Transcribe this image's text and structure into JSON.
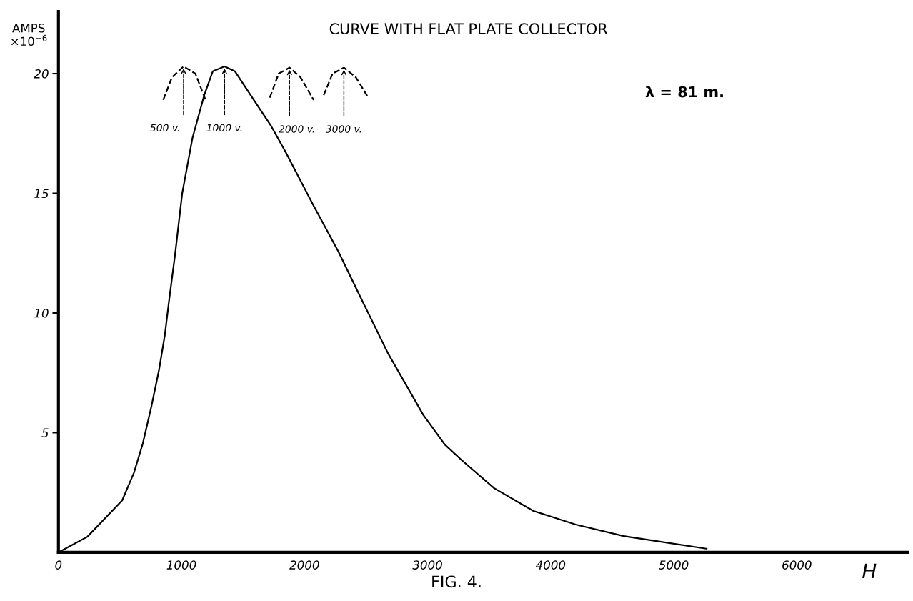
{
  "chart_data": {
    "type": "line",
    "title": "CURVE WITH FLAT PLATE COLLECTOR",
    "xlabel": "H",
    "ylabel": "AMPS\n×10$^{−6}$",
    "x": [
      0,
      235,
      518,
      614,
      686,
      756,
      817,
      864,
      900,
      947,
      1006,
      1089,
      1185,
      1255,
      1350,
      1434,
      1588,
      1730,
      1849,
      2062,
      2276,
      2465,
      2680,
      2965,
      3140,
      3273,
      3541,
      3860,
      4203,
      4593,
      5267
    ],
    "series": [
      {
        "color": "#000000",
        "line_style": "dashed",
        "x": [
          852,
          923,
          1017,
          1113,
          1196
        ],
        "values": [
          18.9,
          19.85,
          20.3,
          20.0,
          18.9
        ]
      },
      {
        "color": "#000000",
        "values": [
          0,
          0.65,
          2.17,
          3.33,
          4.55,
          6.1,
          7.6,
          9.05,
          10.55,
          12.4,
          15.0,
          17.3,
          19.1,
          20.1,
          20.3,
          20.1,
          18.9,
          17.8,
          16.7,
          14.6,
          12.56,
          10.55,
          8.3,
          5.74,
          4.5,
          3.87,
          2.68,
          1.73,
          1.16,
          0.68,
          0.15
        ]
      },
      {
        "color": "#000000",
        "line_style": "dashed",
        "x": [
          1718,
          1790,
          1878,
          1967,
          2074
        ],
        "values": [
          19.0,
          20.0,
          20.25,
          19.85,
          18.9
        ]
      },
      {
        "color": "#000000",
        "line_style": "dashed",
        "x": [
          2156,
          2228,
          2320,
          2417,
          2518
        ],
        "values": [
          19.1,
          20.0,
          20.25,
          19.85,
          19.0
        ]
      }
    ],
    "xlim": [
      0,
      6900
    ],
    "ylim": [
      0,
      22.6
    ],
    "xticks": [
      0,
      1000,
      2000,
      3000,
      4000,
      5000,
      6000
    ],
    "yticks": [
      5,
      10,
      15,
      20
    ],
    "grid": false,
    "legend": false,
    "marker": "none",
    "line_style": "solid",
    "annotations": [
      {
        "text": "500 v.",
        "x": 1017,
        "y": 20.3
      },
      {
        "text": "1000 v.",
        "x": 1350,
        "y": 20.3
      },
      {
        "text": "2000 v.",
        "x": 1878,
        "y": 20.25
      },
      {
        "text": "3000 v.",
        "x": 2320,
        "y": 20.25
      },
      "λ = 81 m.",
      "FIG. 4."
    ]
  }
}
